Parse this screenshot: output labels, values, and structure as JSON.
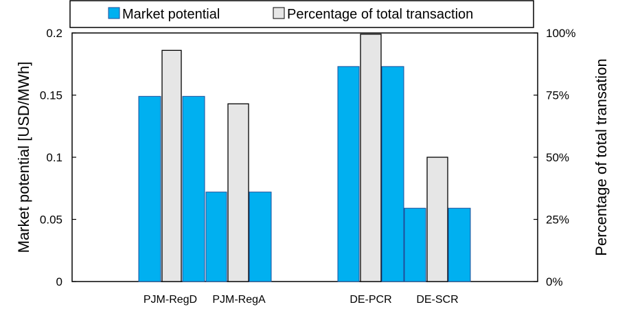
{
  "chart_data": {
    "type": "bar",
    "categories": [
      "PJM-RegD",
      "PJM-RegA",
      "DE-PCR",
      "DE-SCR"
    ],
    "series": [
      {
        "name": "Market potential",
        "axis": "left",
        "values": [
          0.149,
          0.072,
          0.173,
          0.059
        ],
        "color": "#00B0F0"
      },
      {
        "name": "Percentage of total transaction",
        "axis": "right",
        "values": [
          93,
          71.5,
          99.5,
          50
        ],
        "color": "#E6E6E6"
      }
    ],
    "ylabel": "Market potential [USD/MWh]",
    "ylabel_right": "Percentage of total transation",
    "ylim": [
      0,
      0.2
    ],
    "ylim_right": [
      0,
      100
    ],
    "yticks": [
      "0",
      "0.05",
      "0.1",
      "0.15",
      "0.2"
    ],
    "yticks_right": [
      "0%",
      "25%",
      "50%",
      "75%",
      "100%"
    ],
    "grid": false,
    "legend_position": "top"
  }
}
